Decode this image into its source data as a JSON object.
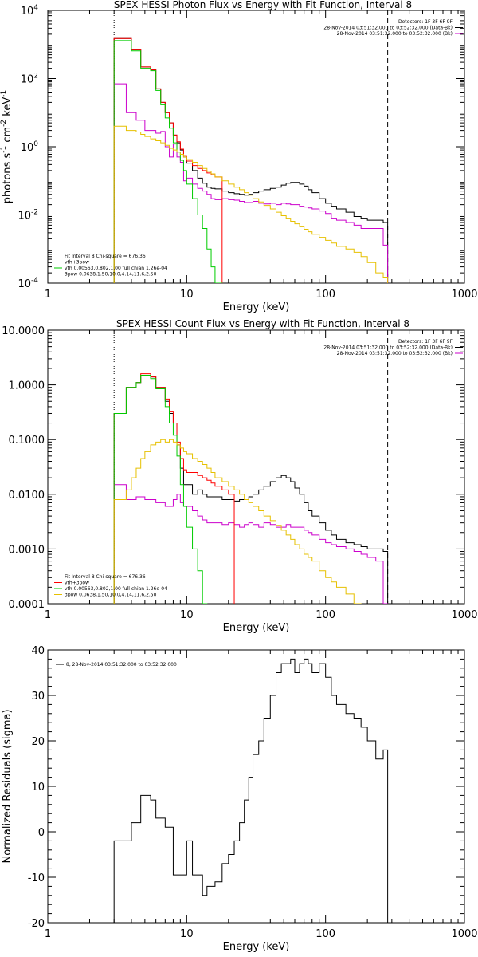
{
  "chart_data": [
    {
      "type": "line",
      "scale": "log-log",
      "title": "SPEX HESSI Photon Flux vs Energy with Fit Function, Interval 8",
      "xlabel": "Energy (keV)",
      "ylabel_parts": [
        "photons s",
        "-1",
        " cm",
        "-2",
        " keV",
        "-1"
      ],
      "xlim": [
        1,
        1000
      ],
      "ylim": [
        0.0001,
        10000
      ],
      "x_ticks": [
        {
          "v": 1,
          "label": "1"
        },
        {
          "v": 10,
          "label": "10"
        },
        {
          "v": 100,
          "label": "100"
        },
        {
          "v": 1000,
          "label": "1000"
        }
      ],
      "y_ticks": [
        {
          "v": 0.0001,
          "base": "10",
          "exp": "-4"
        },
        {
          "v": 0.01,
          "base": "10",
          "exp": "-2"
        },
        {
          "v": 1,
          "base": "10",
          "exp": "0"
        },
        {
          "v": 100,
          "base": "10",
          "exp": "2"
        },
        {
          "v": 10000,
          "base": "10",
          "exp": "4"
        }
      ],
      "vlines": [
        {
          "x": 3,
          "style": "dotted"
        },
        {
          "x": 280,
          "style": "dashed"
        }
      ],
      "legend_top_right": [
        {
          "text": "Detectors: 1F 3F 6F 9F",
          "color": "#000000"
        },
        {
          "text": "28-Nov-2014 03:51:32.000 to 03:52:32.000 (Data-Bk)",
          "color": "#000000"
        },
        {
          "text": "28-Nov-2014 03:51:32.000 to 03:52:32.000 (Bk)",
          "color": "#cc00cc"
        }
      ],
      "legend_bottom_left": [
        {
          "text": "Fit Interval 8   Chi-square = 676.36",
          "color": "#000000"
        },
        {
          "text": "vth+3pow",
          "color": "#ff0000"
        },
        {
          "text": "vth 0.00563,0.802,1.00  full chian 1.26e-04",
          "color": "#00cc00"
        },
        {
          "text": "3pow 0.0638,1.50,10.0,4.14,11.6,2.50",
          "color": "#e6c000"
        }
      ],
      "x_edges": [
        3,
        3.33,
        3.67,
        4,
        4.33,
        4.67,
        5,
        5.5,
        6,
        6.5,
        7,
        7.5,
        8,
        8.5,
        9,
        9.5,
        10,
        11,
        12,
        13,
        14,
        15,
        16,
        18,
        20,
        22,
        24,
        26,
        28,
        30,
        33,
        36,
        40,
        44,
        48,
        52,
        56,
        60,
        65,
        70,
        75,
        80,
        90,
        100,
        110,
        120,
        140,
        160,
        180,
        200,
        230,
        260,
        280
      ],
      "series": [
        {
          "name": "Data-Bk",
          "color": "#000000",
          "values": [
            1500,
            1500,
            1500,
            700,
            700,
            220,
            220,
            180,
            50,
            20,
            10,
            5,
            2.2,
            1.3,
            0.8,
            0.5,
            0.33,
            0.2,
            0.12,
            0.085,
            0.065,
            0.06,
            0.058,
            0.05,
            0.045,
            0.042,
            0.04,
            0.038,
            0.04,
            0.045,
            0.05,
            0.055,
            0.06,
            0.065,
            0.075,
            0.085,
            0.09,
            0.09,
            0.08,
            0.07,
            0.055,
            0.045,
            0.03,
            0.022,
            0.018,
            0.015,
            0.012,
            0.009,
            0.008,
            0.007,
            0.007,
            0.006
          ]
        },
        {
          "name": "Bk",
          "color": "#cc00cc",
          "values": [
            70,
            70,
            10,
            10,
            6,
            6,
            3,
            3,
            2.5,
            2.8,
            1,
            0.5,
            1.2,
            0.5,
            0.35,
            0.1,
            0.12,
            0.08,
            0.06,
            0.05,
            0.04,
            0.03,
            0.028,
            0.03,
            0.028,
            0.027,
            0.025,
            0.023,
            0.023,
            0.025,
            0.022,
            0.021,
            0.022,
            0.02,
            0.022,
            0.021,
            0.02,
            0.02,
            0.018,
            0.017,
            0.016,
            0.015,
            0.013,
            0.011,
            0.008,
            0.007,
            0.006,
            0.005,
            0.004,
            0.004,
            0.004,
            0.0013
          ]
        },
        {
          "name": "vth+3pow",
          "color": "#ff0000",
          "values": [
            1500,
            1500,
            1500,
            700,
            700,
            220,
            220,
            180,
            50,
            20,
            10,
            5,
            2.2,
            1.4,
            0.85,
            0.55,
            0.38,
            0.28,
            0.23,
            0.2,
            0.17,
            0.15,
            0.13
          ]
        },
        {
          "name": "vth",
          "color": "#00cc00",
          "values": [
            1300,
            1300,
            1300,
            650,
            650,
            200,
            200,
            170,
            45,
            17,
            7,
            3.5,
            1.3,
            0.7,
            0.4,
            0.2,
            0.08,
            0.03,
            0.01,
            0.004,
            0.001,
            0.0003,
            0.0001
          ]
        },
        {
          "name": "3pow",
          "color": "#e6c000",
          "values": [
            4,
            4,
            3,
            3,
            2.7,
            2.3,
            2,
            1.7,
            1.5,
            1.3,
            1.1,
            0.9,
            0.8,
            0.7,
            0.6,
            0.5,
            0.42,
            0.35,
            0.28,
            0.23,
            0.19,
            0.16,
            0.13,
            0.1,
            0.08,
            0.065,
            0.055,
            0.045,
            0.038,
            0.03,
            0.024,
            0.019,
            0.015,
            0.012,
            0.0095,
            0.008,
            0.0065,
            0.0055,
            0.0045,
            0.0038,
            0.0032,
            0.0027,
            0.0022,
            0.0018,
            0.0015,
            0.0012,
            0.001,
            0.0008,
            0.0006,
            0.0004,
            0.0002,
            0.00015
          ]
        }
      ]
    },
    {
      "type": "line",
      "scale": "log-log",
      "title": "SPEX HESSI Count Flux vs Energy with Fit Function, Interval 8",
      "xlabel": "Energy (keV)",
      "xlim": [
        1,
        1000
      ],
      "ylim": [
        0.0001,
        10
      ],
      "x_ticks": [
        {
          "v": 1,
          "label": "1"
        },
        {
          "v": 10,
          "label": "10"
        },
        {
          "v": 100,
          "label": "100"
        },
        {
          "v": 1000,
          "label": "1000"
        }
      ],
      "y_ticks": [
        {
          "v": 0.0001,
          "label": "0.0001"
        },
        {
          "v": 0.001,
          "label": "0.0010"
        },
        {
          "v": 0.01,
          "label": "0.0100"
        },
        {
          "v": 0.1,
          "label": "0.1000"
        },
        {
          "v": 1,
          "label": "1.0000"
        },
        {
          "v": 10,
          "label": "10.0000"
        }
      ],
      "vlines": [
        {
          "x": 3,
          "style": "dotted"
        },
        {
          "x": 280,
          "style": "dashed"
        }
      ],
      "legend_top_right": [
        {
          "text": "Detectors: 1F 3F 6F 9F",
          "color": "#000000"
        },
        {
          "text": "28-Nov-2014 03:51:32.000 to 03:52:32.000 (Data-Bk)",
          "color": "#000000"
        },
        {
          "text": "28-Nov-2014 03:51:32.000 to 03:52:32.000 (Bk)",
          "color": "#cc00cc"
        }
      ],
      "legend_bottom_left": [
        {
          "text": "Fit Interval 8   Chi-square = 676.36",
          "color": "#000000"
        },
        {
          "text": "vth+3pow",
          "color": "#ff0000"
        },
        {
          "text": "vth 0.00563,0.802,1.00  full chian 1.26e-04",
          "color": "#00cc00"
        },
        {
          "text": "3pow 0.0638,1.50,10.0,4.14,11.6,2.50",
          "color": "#e6c000"
        }
      ],
      "x_edges": [
        3,
        3.33,
        3.67,
        4,
        4.33,
        4.67,
        5,
        5.5,
        6,
        6.5,
        7,
        7.5,
        8,
        8.5,
        9,
        9.5,
        10,
        11,
        12,
        13,
        14,
        15,
        16,
        18,
        20,
        22,
        24,
        26,
        28,
        30,
        33,
        36,
        40,
        44,
        48,
        52,
        56,
        60,
        65,
        70,
        75,
        80,
        90,
        100,
        110,
        120,
        140,
        160,
        180,
        200,
        230,
        260,
        280
      ],
      "series": [
        {
          "name": "Data-Bk",
          "color": "#000000",
          "values": [
            0.3,
            0.3,
            0.9,
            0.9,
            1.1,
            1.5,
            1.5,
            1.4,
            0.9,
            0.9,
            0.5,
            0.3,
            0.2,
            0.08,
            0.03,
            0.015,
            0.015,
            0.01,
            0.012,
            0.01,
            0.009,
            0.009,
            0.009,
            0.008,
            0.008,
            0.0075,
            0.008,
            0.008,
            0.009,
            0.01,
            0.012,
            0.014,
            0.017,
            0.02,
            0.022,
            0.02,
            0.017,
            0.013,
            0.01,
            0.007,
            0.005,
            0.004,
            0.003,
            0.0022,
            0.0018,
            0.0015,
            0.0013,
            0.0012,
            0.0011,
            0.001,
            0.001,
            0.0009
          ]
        },
        {
          "name": "Bk",
          "color": "#cc00cc",
          "values": [
            0.015,
            0.015,
            0.008,
            0.008,
            0.009,
            0.009,
            0.008,
            0.008,
            0.007,
            0.007,
            0.006,
            0.006,
            0.008,
            0.01,
            0.007,
            0.006,
            0.006,
            0.005,
            0.004,
            0.0034,
            0.003,
            0.003,
            0.003,
            0.0028,
            0.003,
            0.0028,
            0.0025,
            0.0028,
            0.003,
            0.0028,
            0.0025,
            0.003,
            0.0028,
            0.0025,
            0.0025,
            0.0028,
            0.0025,
            0.0025,
            0.0025,
            0.0022,
            0.002,
            0.0018,
            0.0015,
            0.0013,
            0.0012,
            0.0011,
            0.001,
            0.0009,
            0.0008,
            0.0007,
            0.0006,
            0.0001
          ]
        },
        {
          "name": "vth+3pow",
          "color": "#ff0000",
          "values": [
            0.3,
            0.3,
            0.9,
            0.9,
            1.1,
            1.6,
            1.6,
            1.4,
            0.9,
            0.9,
            0.55,
            0.33,
            0.2,
            0.09,
            0.045,
            0.028,
            0.025,
            0.025,
            0.022,
            0.02,
            0.018,
            0.016,
            0.014,
            0.012,
            0.01
          ]
        },
        {
          "name": "vth",
          "color": "#00cc00",
          "values": [
            0.3,
            0.3,
            0.9,
            0.9,
            1.1,
            1.5,
            1.5,
            1.3,
            0.85,
            0.85,
            0.4,
            0.2,
            0.12,
            0.05,
            0.015,
            0.006,
            0.0025,
            0.001,
            0.0004,
            0.0001
          ]
        },
        {
          "name": "3pow",
          "color": "#e6c000",
          "values": [
            0.008,
            0.008,
            0.012,
            0.02,
            0.03,
            0.045,
            0.06,
            0.08,
            0.09,
            0.1,
            0.09,
            0.1,
            0.09,
            0.08,
            0.07,
            0.06,
            0.055,
            0.045,
            0.04,
            0.035,
            0.03,
            0.025,
            0.02,
            0.017,
            0.014,
            0.012,
            0.01,
            0.008,
            0.007,
            0.006,
            0.005,
            0.004,
            0.0033,
            0.0027,
            0.0022,
            0.0018,
            0.0015,
            0.0012,
            0.001,
            0.0008,
            0.0007,
            0.0006,
            0.0004,
            0.0003,
            0.00025,
            0.0002,
            0.00015,
            0.0001
          ]
        }
      ]
    },
    {
      "type": "line",
      "scale": "log-x",
      "title": "",
      "xlabel": "Energy (keV)",
      "ylabel": "Normalized Residuals (sigma)",
      "xlim": [
        1,
        1000
      ],
      "ylim": [
        -20,
        40
      ],
      "x_ticks": [
        {
          "v": 1,
          "label": "1"
        },
        {
          "v": 10,
          "label": "10"
        },
        {
          "v": 100,
          "label": "100"
        },
        {
          "v": 1000,
          "label": "1000"
        }
      ],
      "y_ticks": [
        {
          "v": -20,
          "label": "-20"
        },
        {
          "v": -10,
          "label": "-10"
        },
        {
          "v": 0,
          "label": "0"
        },
        {
          "v": 10,
          "label": "10"
        },
        {
          "v": 20,
          "label": "20"
        },
        {
          "v": 30,
          "label": "30"
        },
        {
          "v": 40,
          "label": "40"
        }
      ],
      "legend_top_left": [
        {
          "text": "8, 28-Nov-2014 03:51:32.000 to 03:52:32.000",
          "color": "#000000"
        }
      ],
      "x_edges": [
        3,
        3.33,
        3.67,
        4,
        4.33,
        4.67,
        5,
        5.5,
        6,
        6.5,
        7,
        7.5,
        8,
        8.5,
        9,
        9.5,
        10,
        11,
        12,
        13,
        14,
        15,
        16,
        18,
        20,
        22,
        24,
        26,
        28,
        30,
        33,
        36,
        40,
        44,
        48,
        52,
        56,
        60,
        65,
        70,
        75,
        80,
        90,
        100,
        110,
        120,
        140,
        160,
        180,
        200,
        230,
        260,
        280
      ],
      "series": [
        {
          "name": "residuals",
          "color": "#000000",
          "values": [
            -2,
            -2,
            -2,
            2,
            2,
            8,
            8,
            7,
            3,
            3,
            1,
            1,
            -9.5,
            -9.5,
            -9.5,
            -9.5,
            -2,
            -9.5,
            -9.5,
            -14,
            -12,
            -12,
            -11,
            -7,
            -5,
            -2,
            2,
            7,
            12,
            17,
            20,
            25,
            30,
            35,
            37,
            37,
            38,
            35,
            37,
            38,
            37,
            35,
            37,
            34,
            30,
            28,
            26,
            25,
            23,
            20,
            16,
            18
          ]
        }
      ]
    }
  ]
}
